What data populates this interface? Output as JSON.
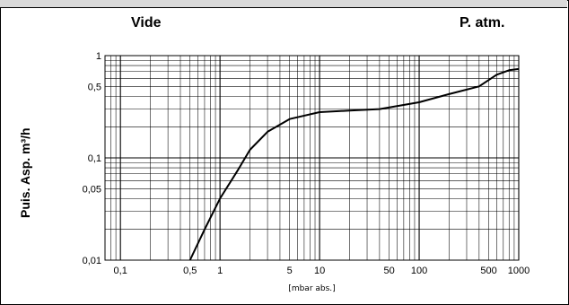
{
  "header": {
    "left_label": "Vide",
    "right_label": "P. atm."
  },
  "chart_data": {
    "type": "line",
    "title": "",
    "xlabel": "[mbar abs.]",
    "ylabel": "Puis. Asp. m³/h",
    "x_scale": "log",
    "y_scale": "log",
    "xlim": [
      0.07,
      1000
    ],
    "ylim": [
      0.01,
      1
    ],
    "grid": true,
    "x_ticks": [
      {
        "v": 0.1,
        "label": "0,1"
      },
      {
        "v": 0.5,
        "label": "0,5"
      },
      {
        "v": 1,
        "label": "1"
      },
      {
        "v": 5,
        "label": "5"
      },
      {
        "v": 10,
        "label": "10"
      },
      {
        "v": 50,
        "label": "50"
      },
      {
        "v": 100,
        "label": "100"
      },
      {
        "v": 500,
        "label": "500"
      },
      {
        "v": 1000,
        "label": "1000"
      }
    ],
    "y_ticks": [
      {
        "v": 0.01,
        "label": "0,01"
      },
      {
        "v": 0.05,
        "label": "0,05"
      },
      {
        "v": 0.1,
        "label": "0,1"
      },
      {
        "v": 0.5,
        "label": "0,5"
      },
      {
        "v": 1,
        "label": "1"
      }
    ],
    "series": [
      {
        "color": "#000000",
        "x": [
          0.5,
          0.7,
          1,
          1.5,
          2,
          3,
          5,
          10,
          20,
          40,
          100,
          200,
          400,
          600,
          800,
          1000
        ],
        "y": [
          0.01,
          0.02,
          0.04,
          0.075,
          0.12,
          0.18,
          0.24,
          0.28,
          0.29,
          0.3,
          0.35,
          0.42,
          0.5,
          0.65,
          0.72,
          0.74
        ]
      }
    ]
  }
}
